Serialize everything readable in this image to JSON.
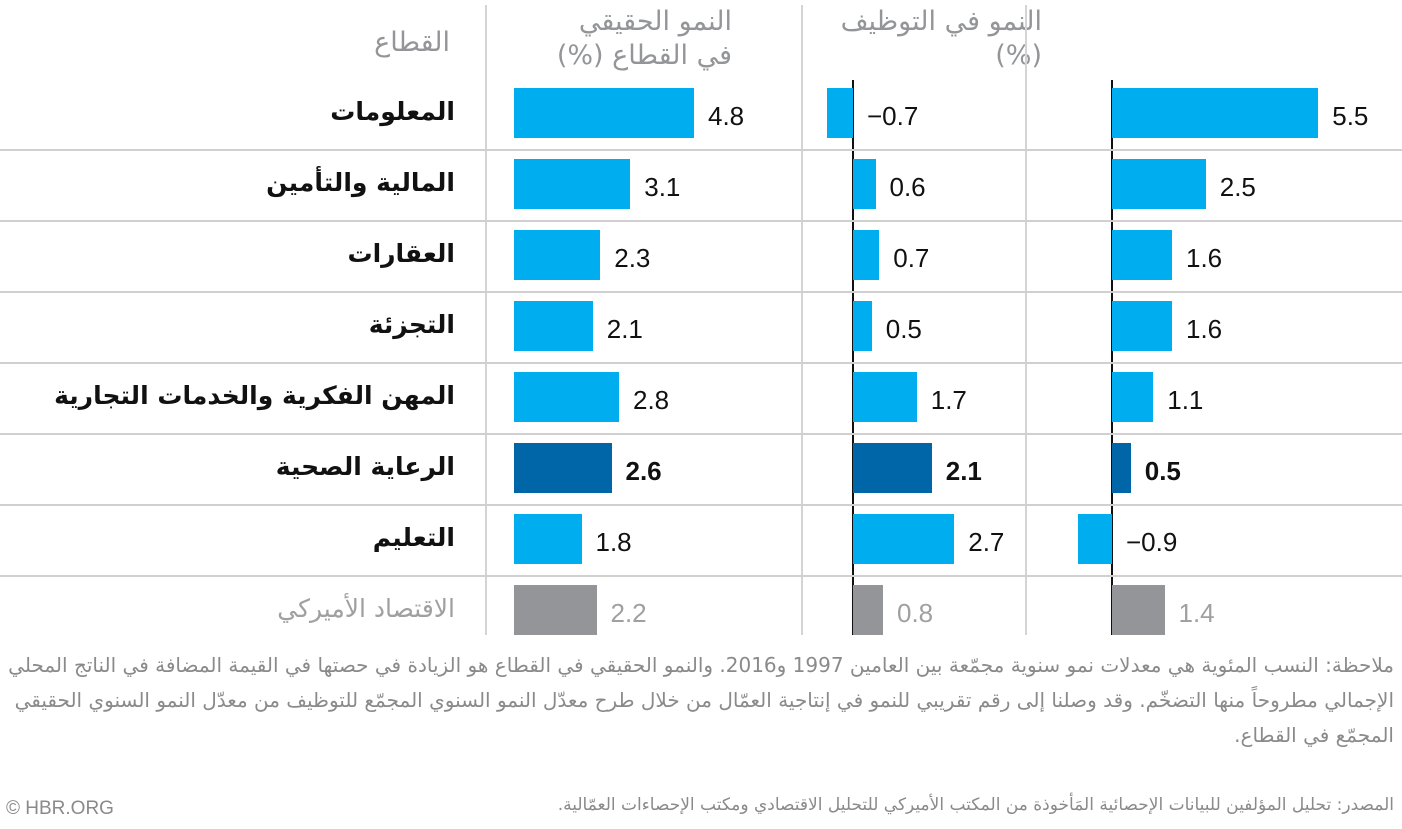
{
  "chart_data": {
    "type": "bar",
    "orientation": "horizontal",
    "category_header": "القطاع",
    "categories": [
      "المعلومات",
      "المالية والتأمين",
      "العقارات",
      "التجزئة",
      "المهن الفكرية والخدمات التجارية",
      "الرعاية الصحية",
      "التعليم",
      "الاقتصاد الأميركي"
    ],
    "highlight_category": "الرعاية الصحية",
    "total_category": "الاقتصاد الأميركي",
    "series": [
      {
        "name": "النمو الحقيقي في القطاع (%)",
        "values": [
          4.8,
          3.1,
          2.3,
          2.1,
          2.8,
          2.6,
          1.8,
          2.2
        ]
      },
      {
        "name": "النمو في التوظيف (%)",
        "values": [
          -0.7,
          0.6,
          0.7,
          0.5,
          1.7,
          2.1,
          2.7,
          0.8
        ]
      },
      {
        "name": "",
        "values": [
          5.5,
          2.5,
          1.6,
          1.6,
          1.1,
          0.5,
          -0.9,
          1.4
        ]
      }
    ],
    "headers": {
      "col1_line1": "النمو الحقيقي",
      "col1_line2": "في القطاع (%)",
      "col2_line1": "النمو في التوظيف",
      "col2_line2": "(%)"
    },
    "colors": {
      "bar": "#00adef",
      "highlight": "#0066a8",
      "total": "#939598",
      "total_text": "#a0a0a0"
    }
  },
  "note": "ملاحظة: النسب المئوية هي معدلات نمو سنوية مجمّعة بين العامين 1997 و2016. والنمو الحقيقي في القطاع هو الزيادة في حصتها في القيمة المضافة في الناتج المحلي الإجمالي مطروحاً منها التضخّم. وقد وصلنا إلى رقم تقريبي للنمو في إنتاجية العمّال من خلال طرح معدّل النمو السنوي المجمّع للتوظيف من معدّل النمو السنوي الحقيقي المجمّع في القطاع.",
  "source": "المصدر: تحليل المؤلفين للبيانات الإحصائية المَأخوذة من المكتب الأميركي للتحليل الاقتصادي ومكتب الإحصاءات العمّالية.",
  "copyright": "© HBR.ORG"
}
